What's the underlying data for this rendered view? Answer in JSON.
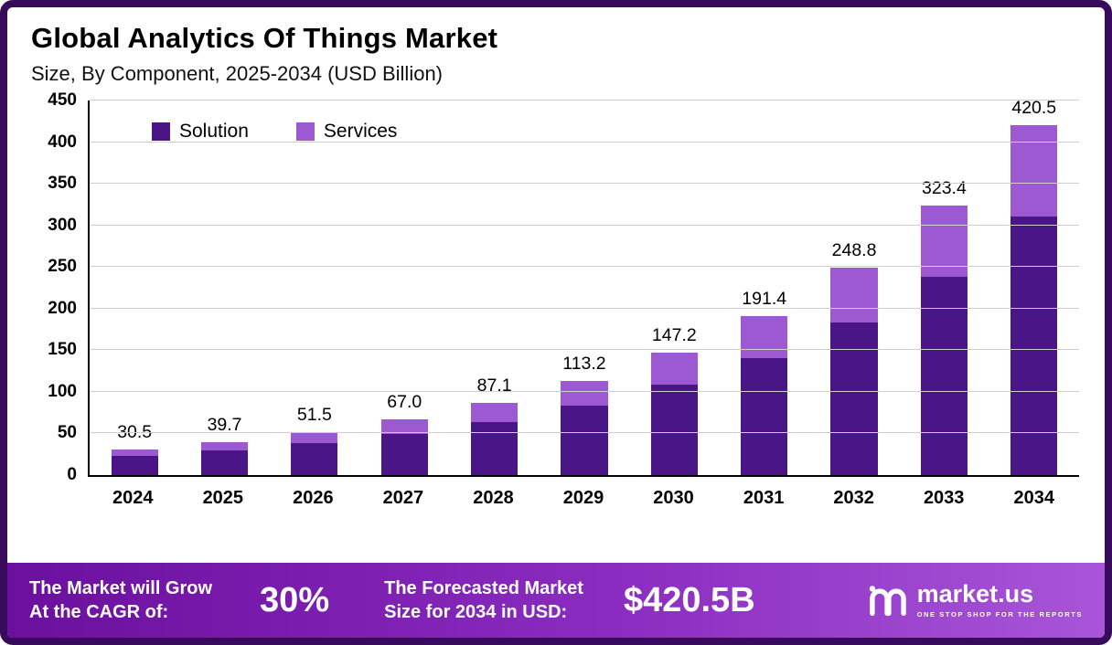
{
  "header": {
    "title": "Global Analytics Of Things Market",
    "subtitle": "Size, By Component, 2025-2034 (USD Billion)"
  },
  "chart_data": {
    "type": "bar",
    "stacked": true,
    "title": "Global Analytics Of Things Market Size, By Component, 2025-2034 (USD Billion)",
    "categories": [
      "2024",
      "2025",
      "2026",
      "2027",
      "2028",
      "2029",
      "2030",
      "2031",
      "2032",
      "2033",
      "2034"
    ],
    "series": [
      {
        "name": "Solution",
        "color": "#4a1586",
        "values": [
          23.0,
          29.5,
          38.0,
          49.5,
          64.0,
          83.5,
          108.5,
          141.0,
          183.5,
          238.5,
          310.5
        ]
      },
      {
        "name": "Services",
        "color": "#9d59d2",
        "values": [
          7.5,
          10.2,
          13.5,
          17.5,
          23.1,
          29.7,
          38.7,
          50.4,
          65.3,
          84.9,
          110.0
        ]
      }
    ],
    "totals": [
      30.5,
      39.7,
      51.5,
      67.0,
      87.1,
      113.2,
      147.2,
      191.4,
      248.8,
      323.4,
      420.5
    ],
    "total_labels": [
      "30.5",
      "39.7",
      "51.5",
      "67.0",
      "87.1",
      "113.2",
      "147.2",
      "191.4",
      "248.8",
      "323.4",
      "420.5"
    ],
    "ylim": [
      0,
      450
    ],
    "ytick_step": 50,
    "grid": true,
    "legend_position": "top-left"
  },
  "footer": {
    "cagr_label": "The Market will Grow\nAt the CAGR of:",
    "cagr_value": "30%",
    "forecast_label": "The Forecasted Market\nSize for 2034 in USD:",
    "forecast_value": "$420.5B",
    "brand": "market.us",
    "brand_tagline": "ONE STOP SHOP FOR THE REPORTS"
  }
}
